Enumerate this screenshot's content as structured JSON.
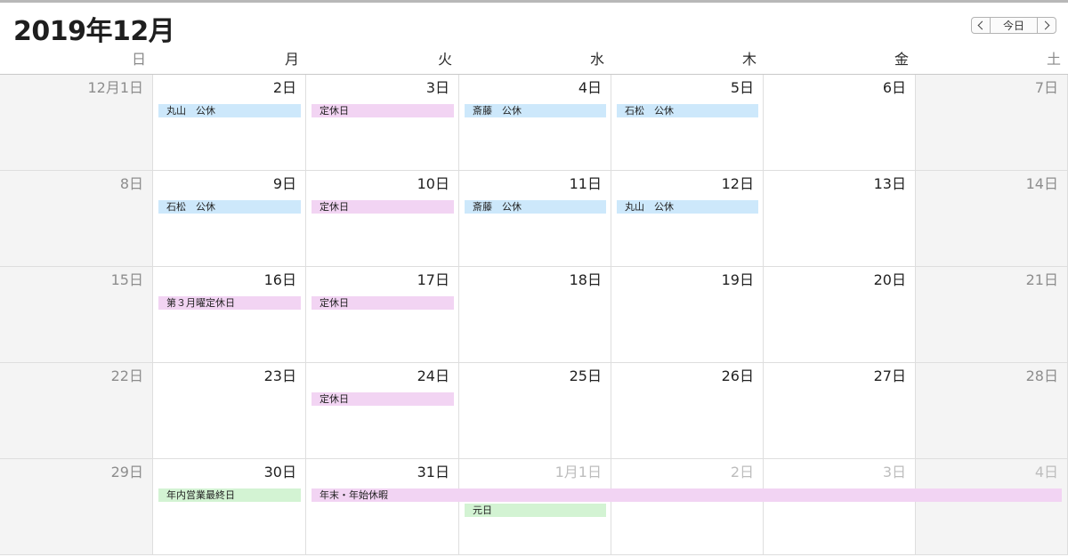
{
  "header": {
    "title": "2019年12月",
    "today_label": "今日",
    "prev_icon": "chevron-left-icon",
    "next_icon": "chevron-right-icon"
  },
  "weekdays": [
    "日",
    "月",
    "火",
    "水",
    "木",
    "金",
    "土"
  ],
  "weeks": [
    [
      "12月1日",
      "2日",
      "3日",
      "4日",
      "5日",
      "6日",
      "7日"
    ],
    [
      "8日",
      "9日",
      "10日",
      "11日",
      "12日",
      "13日",
      "14日"
    ],
    [
      "15日",
      "16日",
      "17日",
      "18日",
      "19日",
      "20日",
      "21日"
    ],
    [
      "22日",
      "23日",
      "24日",
      "25日",
      "26日",
      "27日",
      "28日"
    ],
    [
      "29日",
      "30日",
      "31日",
      "1月1日",
      "2日",
      "3日",
      "4日"
    ]
  ],
  "outside_month_cells": [
    [
      4,
      3
    ],
    [
      4,
      4
    ],
    [
      4,
      5
    ],
    [
      4,
      6
    ]
  ],
  "events": [
    {
      "week": 0,
      "day": 1,
      "span": 1,
      "slot": 0,
      "label": "丸山　公休",
      "color": "blue"
    },
    {
      "week": 0,
      "day": 2,
      "span": 1,
      "slot": 0,
      "label": "定休日",
      "color": "pink"
    },
    {
      "week": 0,
      "day": 3,
      "span": 1,
      "slot": 0,
      "label": "斎藤　公休",
      "color": "blue"
    },
    {
      "week": 0,
      "day": 4,
      "span": 1,
      "slot": 0,
      "label": "石松　公休",
      "color": "blue"
    },
    {
      "week": 1,
      "day": 1,
      "span": 1,
      "slot": 0,
      "label": "石松　公休",
      "color": "blue"
    },
    {
      "week": 1,
      "day": 2,
      "span": 1,
      "slot": 0,
      "label": "定休日",
      "color": "pink"
    },
    {
      "week": 1,
      "day": 3,
      "span": 1,
      "slot": 0,
      "label": "斎藤　公休",
      "color": "blue"
    },
    {
      "week": 1,
      "day": 4,
      "span": 1,
      "slot": 0,
      "label": "丸山　公休",
      "color": "blue"
    },
    {
      "week": 2,
      "day": 1,
      "span": 1,
      "slot": 0,
      "label": "第３月曜定休日",
      "color": "pink"
    },
    {
      "week": 2,
      "day": 2,
      "span": 1,
      "slot": 0,
      "label": "定休日",
      "color": "pink"
    },
    {
      "week": 3,
      "day": 2,
      "span": 1,
      "slot": 0,
      "label": "定休日",
      "color": "pink"
    },
    {
      "week": 4,
      "day": 1,
      "span": 1,
      "slot": 0,
      "label": "年内営業最終日",
      "color": "green"
    },
    {
      "week": 4,
      "day": 2,
      "span": 5,
      "slot": 0,
      "label": "年末・年始休暇",
      "color": "pink"
    },
    {
      "week": 4,
      "day": 3,
      "span": 1,
      "slot": 1,
      "label": "元日",
      "color": "green"
    }
  ]
}
